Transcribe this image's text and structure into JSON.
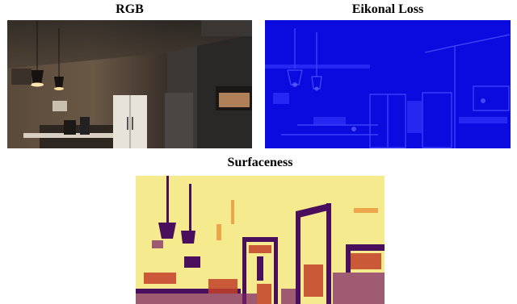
{
  "captions": {
    "rgb": "RGB",
    "eikonal": "Eikonal Loss",
    "surfaceness": "Surfaceness"
  },
  "colors": {
    "rgb_base": "#3a2f26",
    "eikonal_base": "#0a0adf",
    "eikonal_highlight": "#5a5cff",
    "surface_base": "#f6ec90",
    "surface_dark": "#4a0f5c",
    "surface_mid": "#d1542c"
  }
}
